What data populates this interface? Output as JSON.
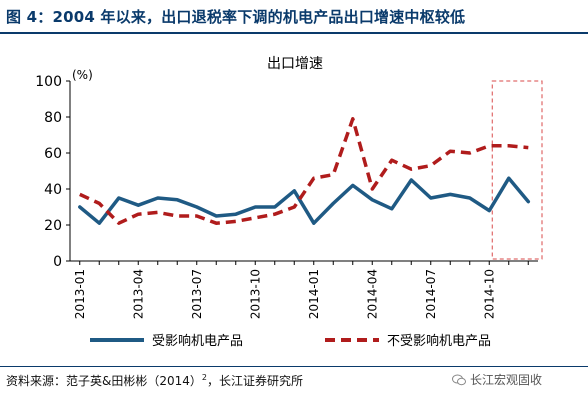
{
  "figure_title": "图 4：2004 年以来，出口退税率下调的机电产品出口增速中枢较低",
  "source": {
    "prefix": "资料来源：范子英&田彬彬（2014）",
    "superscript": "2",
    "suffix": "，长江证券研究所"
  },
  "watermark": "长江宏观固收",
  "colors": {
    "title": "#0a3a6b",
    "series_affected": "#1f5a84",
    "series_unaffected": "#b01c1c",
    "highlight_box": "#d94a4a"
  },
  "chart_data": {
    "type": "line",
    "title": "出口增速",
    "unit_label": "(%)",
    "ylim": [
      0,
      100
    ],
    "yticks": [
      0,
      20,
      40,
      60,
      80,
      100
    ],
    "xtick_labels": [
      "2013-01",
      "2013-04",
      "2013-07",
      "2013-10",
      "2014-01",
      "2014-04",
      "2014-07",
      "2014-10"
    ],
    "x": [
      "2013-01",
      "2013-02",
      "2013-03",
      "2013-04",
      "2013-05",
      "2013-06",
      "2013-07",
      "2013-08",
      "2013-09",
      "2013-10",
      "2013-11",
      "2013-12",
      "2014-01",
      "2014-02",
      "2014-03",
      "2014-04",
      "2014-05",
      "2014-06",
      "2014-07",
      "2014-08",
      "2014-09",
      "2014-10",
      "2014-11",
      "2014-12"
    ],
    "grid": false,
    "legend_position": "bottom",
    "highlight_range": [
      "2014-10",
      "2014-12"
    ],
    "series": [
      {
        "name": "受影响机电产品",
        "style": "solid",
        "values": [
          30,
          21,
          35,
          31,
          35,
          34,
          30,
          25,
          26,
          30,
          30,
          39,
          21,
          32,
          42,
          34,
          29,
          45,
          35,
          37,
          35,
          28,
          46,
          33
        ]
      },
      {
        "name": "不受影响机电产品",
        "style": "dashed",
        "values": [
          37,
          32,
          21,
          26,
          27,
          25,
          25,
          21,
          22,
          24,
          26,
          30,
          46,
          48,
          79,
          40,
          56,
          51,
          53,
          61,
          60,
          64,
          64,
          63
        ]
      }
    ]
  }
}
